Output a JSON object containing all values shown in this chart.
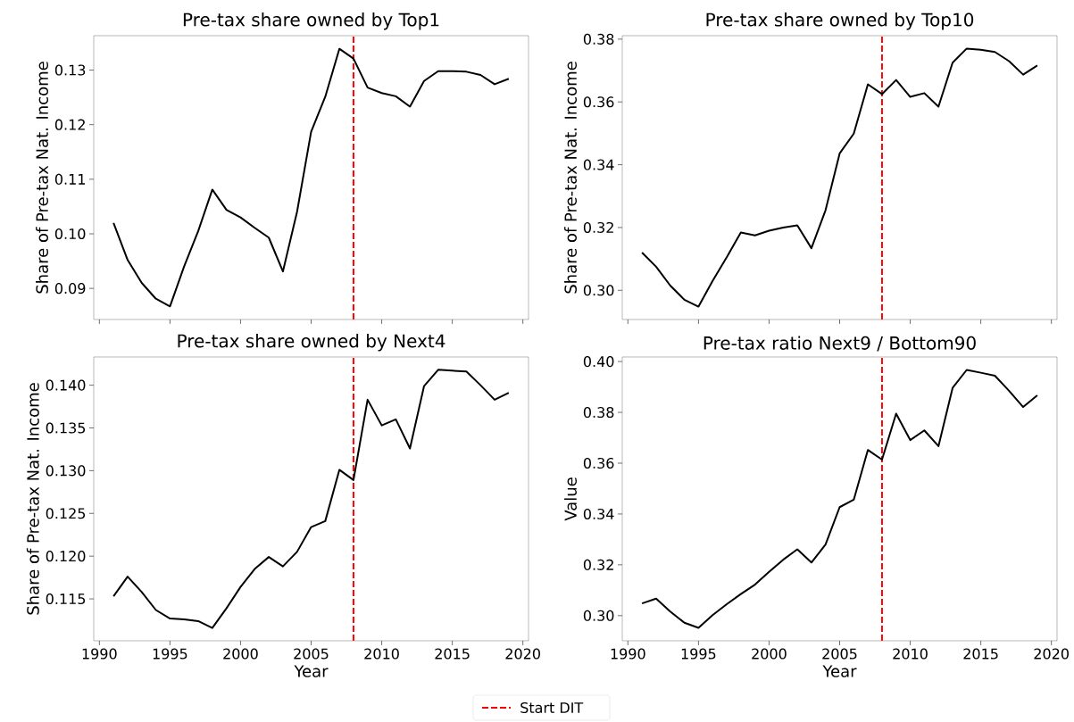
{
  "chart_data": [
    {
      "type": "line",
      "title": "Pre-tax share owned by Top1",
      "ylabel": "Share of Pre-tax Nat. Income",
      "tick_labels": "y",
      "legend": "bottom",
      "x": [
        1991,
        1992,
        1993,
        1994,
        1995,
        1996,
        1997,
        1998,
        1999,
        2000,
        2001,
        2002,
        2003,
        2004,
        2005,
        2006,
        2007,
        2008,
        2009,
        2010,
        2011,
        2012,
        2013,
        2014,
        2015,
        2016,
        2017,
        2018,
        2019
      ],
      "values": [
        0.102,
        0.0952,
        0.091,
        0.0881,
        0.0867,
        0.094,
        0.1005,
        0.1081,
        0.1044,
        0.103,
        0.1011,
        0.0993,
        0.0931,
        0.104,
        0.1187,
        0.1251,
        0.1339,
        0.1321,
        0.1268,
        0.1258,
        0.1252,
        0.1233,
        0.128,
        0.1298,
        0.1298,
        0.1297,
        0.1291,
        0.1274,
        0.1284
      ],
      "color": "#000000",
      "xlim": [
        1989.6,
        2020.4
      ],
      "ylim": [
        0.0843,
        0.1363
      ],
      "xticks": [
        1990,
        1995,
        2000,
        2005,
        2010,
        2015,
        2020
      ],
      "yticks": [
        0.09,
        {
          "value": 0.1,
          "label": "0.10"
        },
        0.11,
        0.12,
        0.13
      ],
      "ref_lines": [
        {
          "axis": "x",
          "value": 2008,
          "label": "Start DIT",
          "color": "#ff0000",
          "line_style": "dashed"
        }
      ]
    },
    {
      "type": "line",
      "title": "Pre-tax share owned by Top10",
      "ylabel": "Share of Pre-tax Nat. Income",
      "tick_labels": "y",
      "x": [
        1991,
        1992,
        1993,
        1994,
        1995,
        1996,
        1997,
        1998,
        1999,
        2000,
        2001,
        2002,
        2003,
        2004,
        2005,
        2006,
        2007,
        2008,
        2009,
        2010,
        2011,
        2012,
        2013,
        2014,
        2015,
        2016,
        2017,
        2018,
        2019
      ],
      "values": [
        0.312,
        0.3075,
        0.3015,
        0.297,
        0.2948,
        0.303,
        0.3105,
        0.3184,
        0.3175,
        0.319,
        0.32,
        0.3207,
        0.3134,
        0.3255,
        0.3436,
        0.3499,
        0.3656,
        0.3625,
        0.367,
        0.3616,
        0.3628,
        0.3585,
        0.3725,
        0.377,
        0.3766,
        0.3759,
        0.373,
        0.3687,
        0.3716
      ],
      "color": "#000000",
      "xlim": [
        1989.6,
        2020.4
      ],
      "ylim": [
        0.2907,
        0.3811
      ],
      "xticks": [
        1990,
        1995,
        2000,
        2005,
        2010,
        2015,
        2020
      ],
      "yticks": [
        {
          "value": 0.3,
          "label": "0.30"
        },
        0.32,
        0.34,
        0.36,
        0.38
      ],
      "ref_lines": [
        {
          "axis": "x",
          "value": 2008,
          "color": "#ff0000",
          "line_style": "dashed"
        }
      ]
    },
    {
      "type": "line",
      "title": "Pre-tax share owned by Next4",
      "xlabel": "Year",
      "ylabel": "Share of Pre-tax Nat. Income",
      "x": [
        1991,
        1992,
        1993,
        1994,
        1995,
        1996,
        1997,
        1998,
        1999,
        2000,
        2001,
        2002,
        2003,
        2004,
        2005,
        2006,
        2007,
        2008,
        2009,
        2010,
        2011,
        2012,
        2013,
        2014,
        2015,
        2016,
        2017,
        2018,
        2019
      ],
      "values": [
        0.1153,
        0.1176,
        0.1158,
        0.1137,
        0.1127,
        0.1126,
        0.1124,
        0.1116,
        0.1139,
        0.1164,
        0.1185,
        0.1199,
        0.1188,
        0.1205,
        0.1234,
        0.1241,
        0.1301,
        0.1289,
        0.1383,
        0.1353,
        0.136,
        0.1326,
        0.1399,
        0.1418,
        0.1417,
        0.1416,
        0.14,
        0.1383,
        0.1391
      ],
      "color": "#000000",
      "xlim": [
        1989.6,
        2020.4
      ],
      "ylim": [
        0.1101,
        0.1433
      ],
      "xticks": [
        1990,
        1995,
        2000,
        2005,
        2010,
        2015,
        2020
      ],
      "yticks": [
        0.115,
        {
          "value": 0.12,
          "label": "0.120"
        },
        0.125,
        {
          "value": 0.13,
          "label": "0.130"
        },
        0.135,
        {
          "value": 0.14,
          "label": "0.140"
        }
      ],
      "ref_lines": [
        {
          "axis": "x",
          "value": 2008,
          "color": "#ff0000",
          "line_style": "dashed"
        }
      ]
    },
    {
      "type": "line",
      "title": "Pre-tax ratio Next9 / Bottom90",
      "xlabel": "Year",
      "ylabel": "Value",
      "x": [
        1991,
        1992,
        1993,
        1994,
        1995,
        1996,
        1997,
        1998,
        1999,
        2000,
        2001,
        2002,
        2003,
        2004,
        2005,
        2006,
        2007,
        2008,
        2009,
        2010,
        2011,
        2012,
        2013,
        2014,
        2015,
        2016,
        2017,
        2018,
        2019
      ],
      "values": [
        0.3048,
        0.3067,
        0.3016,
        0.2972,
        0.2952,
        0.3002,
        0.3045,
        0.3085,
        0.3122,
        0.3172,
        0.322,
        0.3261,
        0.3209,
        0.328,
        0.3427,
        0.3456,
        0.3652,
        0.3614,
        0.3795,
        0.3691,
        0.3729,
        0.3667,
        0.3896,
        0.3967,
        0.3956,
        0.3944,
        0.3885,
        0.3821,
        0.3867
      ],
      "color": "#000000",
      "xlim": [
        1989.6,
        2020.4
      ],
      "ylim": [
        0.2901,
        0.4018
      ],
      "xticks": [
        1990,
        1995,
        2000,
        2005,
        2010,
        2015,
        2020
      ],
      "yticks": [
        {
          "value": 0.3,
          "label": "0.30"
        },
        0.32,
        0.34,
        0.36,
        0.38,
        {
          "value": 0.4,
          "label": "0.40"
        }
      ],
      "ref_lines": [
        {
          "axis": "x",
          "value": 2008,
          "color": "#ff0000",
          "line_style": "dashed"
        }
      ]
    }
  ]
}
